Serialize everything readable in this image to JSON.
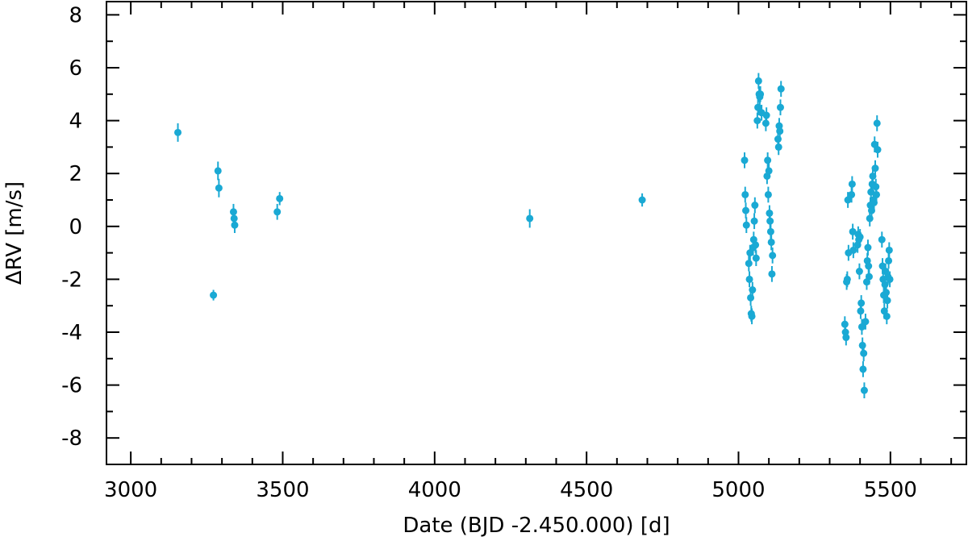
{
  "chart_data": {
    "type": "scatter",
    "xlabel": "Date (BJD -2.450.000) [d]",
    "ylabel": "ΔRV [m/s]",
    "xlim": [
      2920,
      5750
    ],
    "ylim": [
      -9,
      8.5
    ],
    "x_ticks": [
      3000,
      3500,
      4000,
      4500,
      5000,
      5500
    ],
    "x_tick_labels": [
      "3000",
      "3500",
      "4000",
      "4500",
      "5000",
      "5500"
    ],
    "y_ticks": [
      -8,
      -6,
      -4,
      -2,
      0,
      2,
      4,
      6,
      8
    ],
    "y_tick_labels": [
      "-8",
      "-6",
      "-4",
      "-2",
      "0",
      "2",
      "4",
      "6",
      "8"
    ],
    "grid": false,
    "marker_color": "#1aa9d4",
    "series": [
      {
        "points": [
          [
            3155,
            3.55,
            0.35
          ],
          [
            3272,
            -2.6,
            0.2
          ],
          [
            3287,
            2.1,
            0.35
          ],
          [
            3290,
            1.45,
            0.35
          ],
          [
            3338,
            0.55,
            0.3
          ],
          [
            3340,
            0.3,
            0.3
          ],
          [
            3342,
            0.05,
            0.3
          ],
          [
            3482,
            0.55,
            0.3
          ],
          [
            3490,
            1.05,
            0.25
          ],
          [
            4313,
            0.3,
            0.35
          ],
          [
            4683,
            1.0,
            0.25
          ],
          [
            5020,
            2.5,
            0.3
          ],
          [
            5022,
            1.2,
            0.3
          ],
          [
            5024,
            0.6,
            0.3
          ],
          [
            5026,
            0.05,
            0.3
          ],
          [
            5034,
            -1.4,
            0.3
          ],
          [
            5036,
            -2.0,
            0.3
          ],
          [
            5038,
            -1.0,
            0.3
          ],
          [
            5040,
            -2.7,
            0.3
          ],
          [
            5042,
            -3.3,
            0.3
          ],
          [
            5044,
            -3.4,
            0.3
          ],
          [
            5046,
            -2.4,
            0.3
          ],
          [
            5048,
            -0.8,
            0.3
          ],
          [
            5050,
            -0.5,
            0.3
          ],
          [
            5052,
            0.2,
            0.3
          ],
          [
            5054,
            0.8,
            0.3
          ],
          [
            5056,
            -0.7,
            0.3
          ],
          [
            5058,
            -1.2,
            0.3
          ],
          [
            5062,
            4.0,
            0.3
          ],
          [
            5064,
            4.5,
            0.3
          ],
          [
            5066,
            5.5,
            0.3
          ],
          [
            5068,
            5.0,
            0.3
          ],
          [
            5070,
            4.9,
            0.3
          ],
          [
            5072,
            5.0,
            0.3
          ],
          [
            5076,
            4.3,
            0.3
          ],
          [
            5090,
            3.9,
            0.3
          ],
          [
            5092,
            4.2,
            0.3
          ],
          [
            5094,
            1.9,
            0.3
          ],
          [
            5096,
            2.5,
            0.3
          ],
          [
            5098,
            1.2,
            0.3
          ],
          [
            5100,
            2.1,
            0.3
          ],
          [
            5102,
            0.5,
            0.3
          ],
          [
            5104,
            0.2,
            0.3
          ],
          [
            5106,
            -0.2,
            0.3
          ],
          [
            5108,
            -0.6,
            0.3
          ],
          [
            5110,
            -1.8,
            0.3
          ],
          [
            5112,
            -1.1,
            0.3
          ],
          [
            5130,
            3.3,
            0.3
          ],
          [
            5132,
            3.0,
            0.3
          ],
          [
            5134,
            3.8,
            0.3
          ],
          [
            5136,
            3.6,
            0.3
          ],
          [
            5138,
            4.5,
            0.3
          ],
          [
            5140,
            5.2,
            0.3
          ],
          [
            5350,
            -3.7,
            0.3
          ],
          [
            5352,
            -4.0,
            0.3
          ],
          [
            5354,
            -4.2,
            0.3
          ],
          [
            5356,
            -2.1,
            0.3
          ],
          [
            5358,
            -2.0,
            0.3
          ],
          [
            5360,
            1.0,
            0.3
          ],
          [
            5362,
            -1.0,
            0.3
          ],
          [
            5372,
            1.2,
            0.3
          ],
          [
            5374,
            1.6,
            0.3
          ],
          [
            5376,
            -0.2,
            0.3
          ],
          [
            5378,
            -0.9,
            0.3
          ],
          [
            5392,
            -0.7,
            0.3
          ],
          [
            5394,
            -0.3,
            0.3
          ],
          [
            5396,
            -0.5,
            0.3
          ],
          [
            5398,
            -1.7,
            0.3
          ],
          [
            5400,
            -0.4,
            0.3
          ],
          [
            5402,
            -3.2,
            0.3
          ],
          [
            5404,
            -2.9,
            0.3
          ],
          [
            5406,
            -3.8,
            0.3
          ],
          [
            5408,
            -4.5,
            0.3
          ],
          [
            5410,
            -5.4,
            0.3
          ],
          [
            5412,
            -4.8,
            0.3
          ],
          [
            5414,
            -6.2,
            0.3
          ],
          [
            5418,
            -3.6,
            0.3
          ],
          [
            5422,
            -2.1,
            0.3
          ],
          [
            5424,
            -1.3,
            0.3
          ],
          [
            5426,
            -0.8,
            0.3
          ],
          [
            5428,
            -1.5,
            0.3
          ],
          [
            5430,
            -1.9,
            0.3
          ],
          [
            5432,
            0.3,
            0.3
          ],
          [
            5434,
            0.8,
            0.3
          ],
          [
            5436,
            1.3,
            0.3
          ],
          [
            5438,
            0.6,
            0.3
          ],
          [
            5440,
            1.6,
            0.3
          ],
          [
            5442,
            1.9,
            0.3
          ],
          [
            5444,
            1.0,
            0.3
          ],
          [
            5446,
            0.9,
            0.3
          ],
          [
            5448,
            3.1,
            0.3
          ],
          [
            5450,
            2.2,
            0.3
          ],
          [
            5452,
            1.5,
            0.3
          ],
          [
            5454,
            1.2,
            0.3
          ],
          [
            5456,
            3.9,
            0.3
          ],
          [
            5458,
            2.9,
            0.3
          ],
          [
            5472,
            -0.5,
            0.3
          ],
          [
            5474,
            -1.5,
            0.3
          ],
          [
            5476,
            -2.0,
            0.3
          ],
          [
            5478,
            -2.6,
            0.3
          ],
          [
            5480,
            -3.2,
            0.3
          ],
          [
            5482,
            -2.2,
            0.3
          ],
          [
            5484,
            -1.7,
            0.3
          ],
          [
            5486,
            -2.5,
            0.3
          ],
          [
            5488,
            -3.4,
            0.3
          ],
          [
            5490,
            -2.8,
            0.3
          ],
          [
            5492,
            -1.9,
            0.3
          ],
          [
            5494,
            -1.3,
            0.3
          ],
          [
            5496,
            -0.9,
            0.3
          ],
          [
            5498,
            -2.0,
            0.3
          ]
        ]
      }
    ]
  }
}
